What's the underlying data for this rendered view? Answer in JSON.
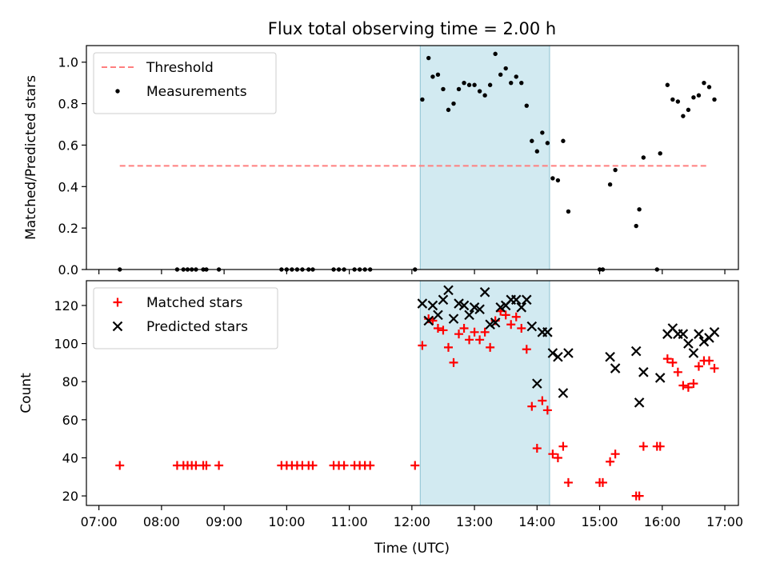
{
  "figure": {
    "title": "Flux total observing time = 2.00 h",
    "xlabel": "Time (UTC)",
    "x_ticks": [
      "07:00",
      "08:00",
      "09:00",
      "10:00",
      "11:00",
      "12:00",
      "13:00",
      "14:00",
      "15:00",
      "16:00",
      "17:00"
    ],
    "shaded_span": {
      "start": "12:08",
      "end": "14:12",
      "color": "#add8e6"
    }
  },
  "chart_data": [
    {
      "type": "scatter",
      "ylabel": "Matched/Predicted stars",
      "ylim": [
        0,
        1.08
      ],
      "y_ticks": [
        "0.0",
        "0.2",
        "0.4",
        "0.6",
        "0.8",
        "1.0"
      ],
      "legend_position": "top-left",
      "threshold": {
        "name": "Threshold",
        "value": 0.5,
        "x_start": "07:20",
        "x_end": "16:43",
        "color": "#ff7f7f",
        "style": "dashed"
      },
      "series": [
        {
          "name": "Measurements",
          "color": "#000000",
          "marker": "dot",
          "points": [
            [
              "07:20",
              0
            ],
            [
              "08:15",
              0
            ],
            [
              "08:21",
              0
            ],
            [
              "08:25",
              0
            ],
            [
              "08:29",
              0
            ],
            [
              "08:33",
              0
            ],
            [
              "08:40",
              0
            ],
            [
              "08:43",
              0
            ],
            [
              "08:55",
              0
            ],
            [
              "09:55",
              0
            ],
            [
              "10:00",
              0
            ],
            [
              "10:05",
              0
            ],
            [
              "10:10",
              0
            ],
            [
              "10:15",
              0
            ],
            [
              "10:21",
              0
            ],
            [
              "10:25",
              0
            ],
            [
              "10:45",
              0
            ],
            [
              "10:50",
              0
            ],
            [
              "10:55",
              0
            ],
            [
              "11:05",
              0
            ],
            [
              "11:10",
              0
            ],
            [
              "11:15",
              0
            ],
            [
              "11:20",
              0
            ],
            [
              "12:03",
              0
            ],
            [
              "12:10",
              0.82
            ],
            [
              "12:16",
              1.02
            ],
            [
              "12:20",
              0.93
            ],
            [
              "12:25",
              0.94
            ],
            [
              "12:30",
              0.87
            ],
            [
              "12:35",
              0.77
            ],
            [
              "12:40",
              0.8
            ],
            [
              "12:45",
              0.87
            ],
            [
              "12:50",
              0.9
            ],
            [
              "12:55",
              0.89
            ],
            [
              "13:00",
              0.89
            ],
            [
              "13:05",
              0.86
            ],
            [
              "13:10",
              0.84
            ],
            [
              "13:15",
              0.89
            ],
            [
              "13:20",
              1.04
            ],
            [
              "13:25",
              0.94
            ],
            [
              "13:30",
              0.97
            ],
            [
              "13:35",
              0.9
            ],
            [
              "13:40",
              0.93
            ],
            [
              "13:45",
              0.9
            ],
            [
              "13:50",
              0.79
            ],
            [
              "13:55",
              0.62
            ],
            [
              "14:00",
              0.57
            ],
            [
              "14:05",
              0.66
            ],
            [
              "14:10",
              0.61
            ],
            [
              "14:15",
              0.44
            ],
            [
              "14:20",
              0.43
            ],
            [
              "14:25",
              0.62
            ],
            [
              "14:30",
              0.28
            ],
            [
              "15:00",
              0
            ],
            [
              "15:03",
              0
            ],
            [
              "15:10",
              0.41
            ],
            [
              "15:15",
              0.48
            ],
            [
              "15:35",
              0.21
            ],
            [
              "15:38",
              0.29
            ],
            [
              "15:42",
              0.54
            ],
            [
              "15:55",
              0
            ],
            [
              "15:58",
              0.56
            ],
            [
              "16:05",
              0.89
            ],
            [
              "16:10",
              0.82
            ],
            [
              "16:15",
              0.81
            ],
            [
              "16:20",
              0.74
            ],
            [
              "16:25",
              0.77
            ],
            [
              "16:30",
              0.83
            ],
            [
              "16:35",
              0.84
            ],
            [
              "16:40",
              0.9
            ],
            [
              "16:45",
              0.88
            ],
            [
              "16:50",
              0.82
            ]
          ]
        }
      ]
    },
    {
      "type": "scatter",
      "ylabel": "Count",
      "ylim": [
        15,
        133
      ],
      "y_ticks": [
        "20",
        "40",
        "60",
        "80",
        "100",
        "120"
      ],
      "legend_position": "top-left",
      "series": [
        {
          "name": "Matched stars",
          "color": "#ff0000",
          "marker": "plus",
          "points": [
            [
              "07:20",
              36
            ],
            [
              "08:15",
              36
            ],
            [
              "08:21",
              36
            ],
            [
              "08:25",
              36
            ],
            [
              "08:29",
              36
            ],
            [
              "08:33",
              36
            ],
            [
              "08:40",
              36
            ],
            [
              "08:43",
              36
            ],
            [
              "08:55",
              36
            ],
            [
              "09:55",
              36
            ],
            [
              "10:00",
              36
            ],
            [
              "10:05",
              36
            ],
            [
              "10:10",
              36
            ],
            [
              "10:15",
              36
            ],
            [
              "10:21",
              36
            ],
            [
              "10:25",
              36
            ],
            [
              "10:45",
              36
            ],
            [
              "10:50",
              36
            ],
            [
              "10:55",
              36
            ],
            [
              "11:05",
              36
            ],
            [
              "11:10",
              36
            ],
            [
              "11:15",
              36
            ],
            [
              "11:20",
              36
            ],
            [
              "12:03",
              36
            ],
            [
              "12:10",
              99
            ],
            [
              "12:16",
              113
            ],
            [
              "12:20",
              112
            ],
            [
              "12:25",
              108
            ],
            [
              "12:30",
              107
            ],
            [
              "12:35",
              98
            ],
            [
              "12:40",
              90
            ],
            [
              "12:45",
              105
            ],
            [
              "12:50",
              108
            ],
            [
              "12:55",
              102
            ],
            [
              "13:00",
              106
            ],
            [
              "13:05",
              102
            ],
            [
              "13:10",
              106
            ],
            [
              "13:15",
              98
            ],
            [
              "13:20",
              112
            ],
            [
              "13:25",
              117
            ],
            [
              "13:30",
              115
            ],
            [
              "13:35",
              110
            ],
            [
              "13:40",
              114
            ],
            [
              "13:45",
              108
            ],
            [
              "13:50",
              97
            ],
            [
              "13:55",
              67
            ],
            [
              "14:00",
              45
            ],
            [
              "14:05",
              70
            ],
            [
              "14:10",
              65
            ],
            [
              "14:15",
              42
            ],
            [
              "14:20",
              40
            ],
            [
              "14:25",
              46
            ],
            [
              "14:30",
              27
            ],
            [
              "15:00",
              27
            ],
            [
              "15:03",
              27
            ],
            [
              "15:10",
              38
            ],
            [
              "15:15",
              42
            ],
            [
              "15:35",
              20
            ],
            [
              "15:38",
              20
            ],
            [
              "15:42",
              46
            ],
            [
              "15:55",
              46
            ],
            [
              "15:58",
              46
            ],
            [
              "16:05",
              92
            ],
            [
              "16:10",
              90
            ],
            [
              "16:15",
              85
            ],
            [
              "16:20",
              78
            ],
            [
              "16:25",
              77
            ],
            [
              "16:30",
              79
            ],
            [
              "16:35",
              88
            ],
            [
              "16:40",
              91
            ],
            [
              "16:45",
              91
            ],
            [
              "16:50",
              87
            ]
          ]
        },
        {
          "name": "Predicted stars",
          "color": "#000000",
          "marker": "cross",
          "points": [
            [
              "12:10",
              121
            ],
            [
              "12:16",
              112
            ],
            [
              "12:20",
              120
            ],
            [
              "12:25",
              115
            ],
            [
              "12:30",
              123
            ],
            [
              "12:35",
              128
            ],
            [
              "12:40",
              113
            ],
            [
              "12:45",
              121
            ],
            [
              "12:50",
              120
            ],
            [
              "12:55",
              115
            ],
            [
              "13:00",
              119
            ],
            [
              "13:05",
              118
            ],
            [
              "13:10",
              127
            ],
            [
              "13:15",
              110
            ],
            [
              "13:20",
              111
            ],
            [
              "13:25",
              119
            ],
            [
              "13:30",
              120
            ],
            [
              "13:35",
              123
            ],
            [
              "13:40",
              123
            ],
            [
              "13:45",
              119
            ],
            [
              "13:50",
              123
            ],
            [
              "13:55",
              109
            ],
            [
              "14:00",
              79
            ],
            [
              "14:05",
              106
            ],
            [
              "14:10",
              106
            ],
            [
              "14:15",
              95
            ],
            [
              "14:20",
              93
            ],
            [
              "14:25",
              74
            ],
            [
              "14:30",
              95
            ],
            [
              "15:10",
              93
            ],
            [
              "15:15",
              87
            ],
            [
              "15:35",
              96
            ],
            [
              "15:38",
              69
            ],
            [
              "15:42",
              85
            ],
            [
              "15:58",
              82
            ],
            [
              "16:05",
              105
            ],
            [
              "16:10",
              108
            ],
            [
              "16:15",
              105
            ],
            [
              "16:20",
              105
            ],
            [
              "16:25",
              100
            ],
            [
              "16:30",
              95
            ],
            [
              "16:35",
              105
            ],
            [
              "16:40",
              101
            ],
            [
              "16:45",
              103
            ],
            [
              "16:50",
              106
            ]
          ]
        }
      ]
    }
  ]
}
